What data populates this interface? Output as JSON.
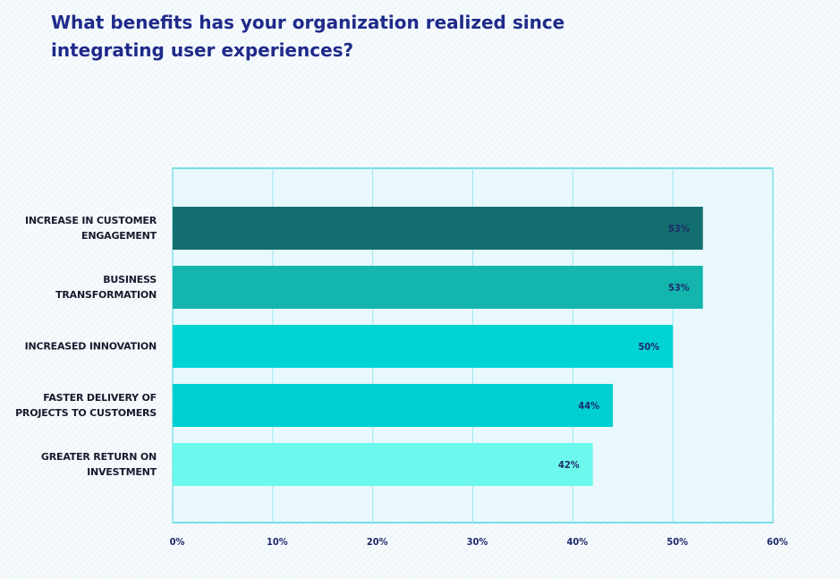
{
  "chart_data": {
    "type": "bar",
    "orientation": "horizontal",
    "title": "What benefits has your organization realized since integrating user experiences?",
    "categories": [
      "INCREASE IN CUSTOMER ENGAGEMENT",
      "BUSINESS TRANSFORMATION",
      "INCREASED INNOVATION",
      "FASTER DELIVERY OF PROJECTS TO CUSTOMERS",
      "GREATER RETURN ON INVESTMENT"
    ],
    "values": [
      53,
      53,
      50,
      44,
      42
    ],
    "value_labels": [
      "53%",
      "53%",
      "50%",
      "44%",
      "42%"
    ],
    "colors": [
      "#136e70",
      "#13b5ad",
      "#00d3d3",
      "#00cfcf",
      "#6cf8ec"
    ],
    "xlim": [
      0,
      60
    ],
    "xticks": [
      {
        "value": 0,
        "label": "0%"
      },
      {
        "value": 10,
        "label": "10%"
      },
      {
        "value": 20,
        "label": "20%"
      },
      {
        "value": 30,
        "label": "30%"
      },
      {
        "value": 40,
        "label": "40%"
      },
      {
        "value": 50,
        "label": "50%"
      },
      {
        "value": 60,
        "label": "60%"
      }
    ],
    "grid": true
  }
}
